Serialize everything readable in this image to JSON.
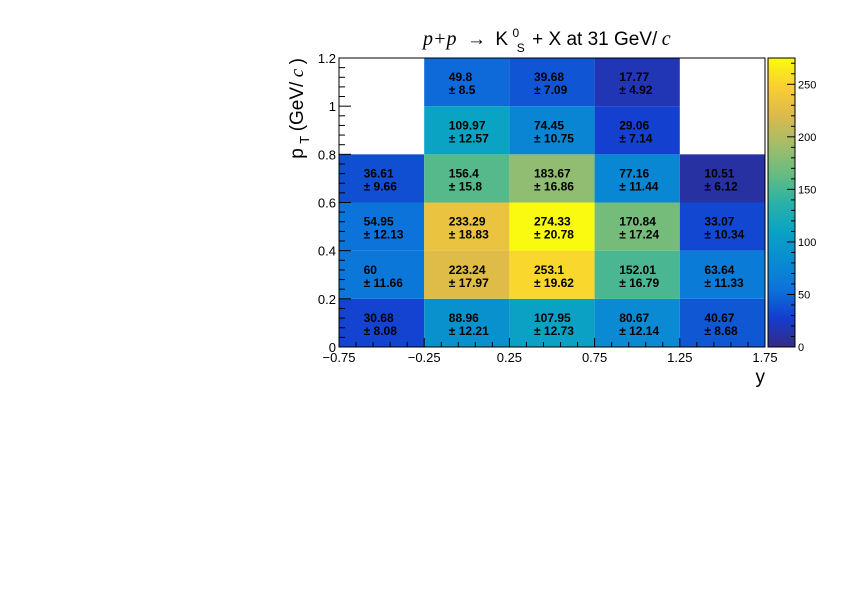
{
  "chart_data": {
    "type": "heatmap",
    "title": {
      "reaction_lhs": "p+p",
      "arrow": "→",
      "particle": "K",
      "particle_sup": "0",
      "particle_sub": "S",
      "rest": "+ X at 31 GeV/",
      "unit_it": "c"
    },
    "xlabel": "y",
    "ylabel": {
      "main": "p",
      "sub": "T",
      "unit_pre": " (GeV/",
      "unit_it": "c",
      "unit_post": ")"
    },
    "x_edges": [
      -0.75,
      -0.25,
      0.25,
      0.75,
      1.25,
      1.75
    ],
    "y_edges": [
      0,
      0.2,
      0.4,
      0.6,
      0.8,
      1.0,
      1.2
    ],
    "x_ticks": [
      "−0.75",
      "−0.25",
      "0.25",
      "0.75",
      "1.25",
      "1.75"
    ],
    "y_ticks": [
      "0",
      "0.2",
      "0.4",
      "0.6",
      "0.8",
      "1",
      "1.2"
    ],
    "z_range": [
      0,
      275
    ],
    "z_ticks": [
      "0",
      "50",
      "100",
      "150",
      "200",
      "250"
    ],
    "palette": "kBird",
    "error_prefix": "± ",
    "cells": [
      {
        "x": 0,
        "y": 0,
        "value": "30.68",
        "error": "8.08"
      },
      {
        "x": 1,
        "y": 0,
        "value": "88.96",
        "error": "12.21"
      },
      {
        "x": 2,
        "y": 0,
        "value": "107.95",
        "error": "12.73"
      },
      {
        "x": 3,
        "y": 0,
        "value": "80.67",
        "error": "12.14"
      },
      {
        "x": 4,
        "y": 0,
        "value": "40.67",
        "error": "8.68"
      },
      {
        "x": 0,
        "y": 1,
        "value": "60",
        "error": "11.66"
      },
      {
        "x": 1,
        "y": 1,
        "value": "223.24",
        "error": "17.97"
      },
      {
        "x": 2,
        "y": 1,
        "value": "253.1",
        "error": "19.62"
      },
      {
        "x": 3,
        "y": 1,
        "value": "152.01",
        "error": "16.79"
      },
      {
        "x": 4,
        "y": 1,
        "value": "63.64",
        "error": "11.33"
      },
      {
        "x": 0,
        "y": 2,
        "value": "54.95",
        "error": "12.13"
      },
      {
        "x": 1,
        "y": 2,
        "value": "233.29",
        "error": "18.83"
      },
      {
        "x": 2,
        "y": 2,
        "value": "274.33",
        "error": "20.78"
      },
      {
        "x": 3,
        "y": 2,
        "value": "170.84",
        "error": "17.24"
      },
      {
        "x": 4,
        "y": 2,
        "value": "33.07",
        "error": "10.34"
      },
      {
        "x": 0,
        "y": 3,
        "value": "36.61",
        "error": "9.66"
      },
      {
        "x": 1,
        "y": 3,
        "value": "156.4",
        "error": "15.8"
      },
      {
        "x": 2,
        "y": 3,
        "value": "183.67",
        "error": "16.86"
      },
      {
        "x": 3,
        "y": 3,
        "value": "77.16",
        "error": "11.44"
      },
      {
        "x": 4,
        "y": 3,
        "value": "10.51",
        "error": "6.12"
      },
      {
        "x": 1,
        "y": 4,
        "value": "109.97",
        "error": "12.57"
      },
      {
        "x": 2,
        "y": 4,
        "value": "74.45",
        "error": "10.75"
      },
      {
        "x": 3,
        "y": 4,
        "value": "29.06",
        "error": "7.14"
      },
      {
        "x": 1,
        "y": 5,
        "value": "49.8",
        "error": "8.5"
      },
      {
        "x": 2,
        "y": 5,
        "value": "39.68",
        "error": "7.09"
      },
      {
        "x": 3,
        "y": 5,
        "value": "17.77",
        "error": "4.92"
      }
    ]
  }
}
